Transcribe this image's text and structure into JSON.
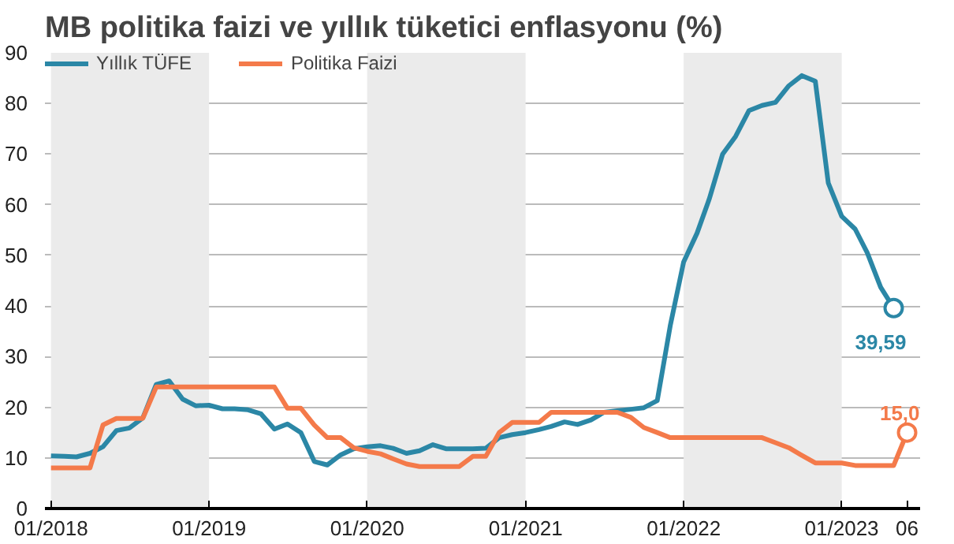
{
  "chart_data": {
    "type": "line",
    "title": "MB politika faizi ve yıllık tüketici enflasyonu (%)",
    "x": [
      "2018-01",
      "2018-02",
      "2018-03",
      "2018-04",
      "2018-05",
      "2018-06",
      "2018-07",
      "2018-08",
      "2018-09",
      "2018-10",
      "2018-11",
      "2018-12",
      "2019-01",
      "2019-02",
      "2019-03",
      "2019-04",
      "2019-05",
      "2019-06",
      "2019-07",
      "2019-08",
      "2019-09",
      "2019-10",
      "2019-11",
      "2019-12",
      "2020-01",
      "2020-02",
      "2020-03",
      "2020-04",
      "2020-05",
      "2020-06",
      "2020-07",
      "2020-08",
      "2020-09",
      "2020-10",
      "2020-11",
      "2020-12",
      "2021-01",
      "2021-02",
      "2021-03",
      "2021-04",
      "2021-05",
      "2021-06",
      "2021-07",
      "2021-08",
      "2021-09",
      "2021-10",
      "2021-11",
      "2021-12",
      "2022-01",
      "2022-02",
      "2022-03",
      "2022-04",
      "2022-05",
      "2022-06",
      "2022-07",
      "2022-08",
      "2022-09",
      "2022-10",
      "2022-11",
      "2022-12",
      "2023-01",
      "2023-02",
      "2023-03",
      "2023-04",
      "2023-05",
      "2023-06"
    ],
    "series": [
      {
        "name": "Yıllık TÜFE",
        "color": "#2b87a6",
        "values": [
          10.4,
          10.3,
          10.2,
          10.9,
          12.2,
          15.4,
          15.9,
          17.9,
          24.5,
          25.2,
          21.6,
          20.3,
          20.4,
          19.7,
          19.7,
          19.5,
          18.7,
          15.7,
          16.7,
          15.0,
          9.3,
          8.6,
          10.6,
          11.8,
          12.2,
          12.4,
          11.9,
          10.9,
          11.4,
          12.6,
          11.8,
          11.8,
          11.8,
          11.9,
          14.0,
          14.6,
          15.0,
          15.6,
          16.2,
          17.1,
          16.6,
          17.5,
          19.0,
          19.3,
          19.6,
          19.9,
          21.3,
          36.1,
          48.7,
          54.4,
          61.1,
          70.0,
          73.5,
          78.6,
          79.6,
          80.2,
          83.5,
          85.5,
          84.4,
          64.3,
          57.7,
          55.2,
          50.5,
          43.7,
          39.59,
          null
        ]
      },
      {
        "name": "Politika Faizi",
        "color": "#f47a4a",
        "values": [
          8.0,
          8.0,
          8.0,
          8.0,
          16.5,
          17.8,
          17.8,
          17.8,
          24.0,
          24.0,
          24.0,
          24.0,
          24.0,
          24.0,
          24.0,
          24.0,
          24.0,
          24.0,
          19.8,
          19.8,
          16.5,
          14.0,
          14.0,
          12.0,
          11.3,
          10.8,
          9.8,
          8.8,
          8.3,
          8.3,
          8.3,
          8.3,
          10.3,
          10.3,
          15.0,
          17.0,
          17.0,
          17.0,
          19.0,
          19.0,
          19.0,
          19.0,
          19.0,
          19.0,
          18.0,
          16.0,
          15.0,
          14.0,
          14.0,
          14.0,
          14.0,
          14.0,
          14.0,
          14.0,
          14.0,
          13.0,
          12.0,
          10.5,
          9.0,
          9.0,
          9.0,
          8.5,
          8.5,
          8.5,
          8.5,
          15.0
        ]
      }
    ],
    "xlim": [
      "2017-12-18",
      "2023-07-01"
    ],
    "xticks": [
      {
        "value": "2018-01",
        "label": "01/2018"
      },
      {
        "value": "2019-01",
        "label": "01/2019"
      },
      {
        "value": "2020-01",
        "label": "01/2020"
      },
      {
        "value": "2021-01",
        "label": "01/2021"
      },
      {
        "value": "2022-01",
        "label": "01/2022"
      },
      {
        "value": "2023-01",
        "label": "01/2023"
      },
      {
        "value": "2023-06",
        "label": "06"
      }
    ],
    "ylim": [
      0,
      90
    ],
    "yticks": [
      0,
      10,
      20,
      30,
      40,
      50,
      60,
      70,
      80,
      90
    ],
    "bands": [
      {
        "axis": "x",
        "from": "2018-01",
        "to": "2019-01",
        "color": "#ebebeb"
      },
      {
        "axis": "x",
        "from": "2020-01",
        "to": "2021-01",
        "color": "#ebebeb"
      },
      {
        "axis": "x",
        "from": "2022-01",
        "to": "2023-01",
        "color": "#ebebeb"
      }
    ],
    "annotations": [
      {
        "text": "39,59",
        "x": "2023-05",
        "y": 39.59
      },
      {
        "text": "15,0",
        "x": "2023-06",
        "y": 15.0
      }
    ],
    "grid": "y",
    "legend": "top left",
    "line_style": "solid"
  }
}
